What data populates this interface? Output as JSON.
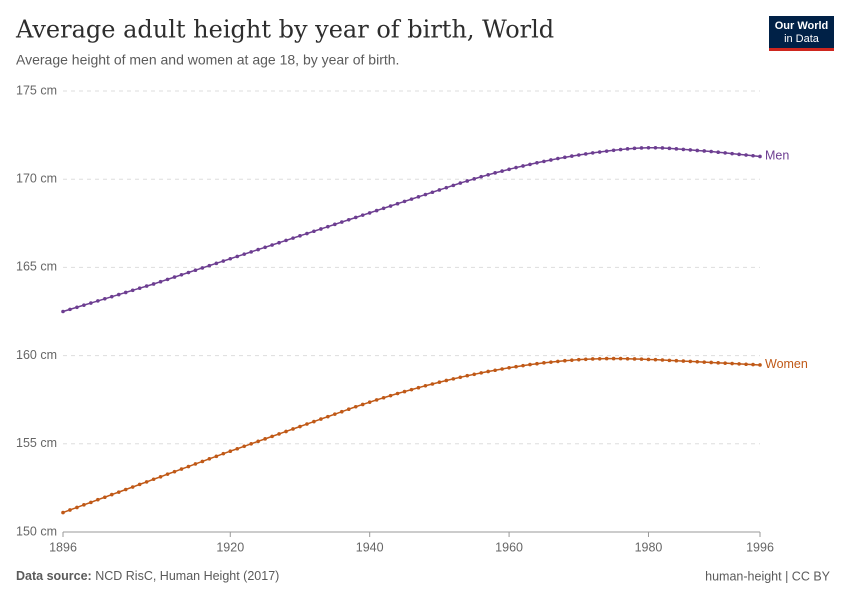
{
  "chart_data": {
    "type": "line",
    "title": "Average adult height by year of birth, World",
    "subtitle": "Average height of men and women at age 18, by year of birth.",
    "source_label": "Data source:",
    "source": "NCD RisC, Human Height (2017)",
    "license": "human-height | CC BY",
    "logo": [
      "Our World",
      "in Data"
    ],
    "x": [
      1896,
      1897,
      1898,
      1899,
      1900,
      1901,
      1902,
      1903,
      1904,
      1905,
      1906,
      1907,
      1908,
      1909,
      1910,
      1911,
      1912,
      1913,
      1914,
      1915,
      1916,
      1917,
      1918,
      1919,
      1920,
      1921,
      1922,
      1923,
      1924,
      1925,
      1926,
      1927,
      1928,
      1929,
      1930,
      1931,
      1932,
      1933,
      1934,
      1935,
      1936,
      1937,
      1938,
      1939,
      1940,
      1941,
      1942,
      1943,
      1944,
      1945,
      1946,
      1947,
      1948,
      1949,
      1950,
      1951,
      1952,
      1953,
      1954,
      1955,
      1956,
      1957,
      1958,
      1959,
      1960,
      1961,
      1962,
      1963,
      1964,
      1965,
      1966,
      1967,
      1968,
      1969,
      1970,
      1971,
      1972,
      1973,
      1974,
      1975,
      1976,
      1977,
      1978,
      1979,
      1980,
      1981,
      1982,
      1983,
      1984,
      1985,
      1986,
      1987,
      1988,
      1989,
      1990,
      1991,
      1992,
      1993,
      1994,
      1995,
      1996
    ],
    "series": [
      {
        "name": "Men",
        "color": "#6d3e91",
        "values": [
          162.5,
          162.62,
          162.74,
          162.86,
          162.98,
          163.1,
          163.22,
          163.34,
          163.46,
          163.58,
          163.7,
          163.82,
          163.94,
          164.06,
          164.19,
          164.32,
          164.45,
          164.58,
          164.71,
          164.84,
          164.97,
          165.1,
          165.23,
          165.36,
          165.49,
          165.62,
          165.75,
          165.88,
          166.01,
          166.14,
          166.27,
          166.4,
          166.53,
          166.66,
          166.79,
          166.92,
          167.05,
          167.18,
          167.31,
          167.44,
          167.57,
          167.7,
          167.83,
          167.96,
          168.09,
          168.22,
          168.35,
          168.48,
          168.61,
          168.74,
          168.87,
          169.0,
          169.13,
          169.26,
          169.39,
          169.52,
          169.65,
          169.78,
          169.9,
          170.02,
          170.14,
          170.25,
          170.36,
          170.46,
          170.56,
          170.66,
          170.75,
          170.84,
          170.93,
          171.01,
          171.09,
          171.17,
          171.24,
          171.31,
          171.37,
          171.43,
          171.49,
          171.54,
          171.59,
          171.64,
          171.68,
          171.72,
          171.75,
          171.77,
          171.78,
          171.78,
          171.77,
          171.75,
          171.72,
          171.69,
          171.66,
          171.63,
          171.6,
          171.57,
          171.53,
          171.49,
          171.45,
          171.41,
          171.37,
          171.33,
          171.29
        ]
      },
      {
        "name": "Women",
        "color": "#c05917",
        "values": [
          151.1,
          151.25,
          151.39,
          151.54,
          151.68,
          151.83,
          151.97,
          152.12,
          152.26,
          152.41,
          152.55,
          152.7,
          152.84,
          152.99,
          153.13,
          153.28,
          153.42,
          153.57,
          153.71,
          153.86,
          154.0,
          154.15,
          154.29,
          154.44,
          154.58,
          154.72,
          154.86,
          155.0,
          155.14,
          155.28,
          155.42,
          155.56,
          155.7,
          155.84,
          155.98,
          156.12,
          156.26,
          156.4,
          156.54,
          156.68,
          156.82,
          156.96,
          157.1,
          157.23,
          157.36,
          157.49,
          157.61,
          157.73,
          157.85,
          157.96,
          158.07,
          158.18,
          158.29,
          158.39,
          158.49,
          158.59,
          158.68,
          158.77,
          158.86,
          158.94,
          159.02,
          159.1,
          159.17,
          159.24,
          159.31,
          159.37,
          159.43,
          159.49,
          159.54,
          159.59,
          159.63,
          159.67,
          159.71,
          159.74,
          159.77,
          159.79,
          159.81,
          159.82,
          159.83,
          159.83,
          159.83,
          159.82,
          159.81,
          159.8,
          159.78,
          159.77,
          159.75,
          159.73,
          159.71,
          159.69,
          159.67,
          159.65,
          159.63,
          159.61,
          159.59,
          159.57,
          159.55,
          159.53,
          159.51,
          159.49,
          159.47
        ]
      }
    ],
    "xlim": [
      1896,
      1996
    ],
    "xticks": [
      1896,
      1920,
      1940,
      1960,
      1980,
      1996
    ],
    "ylim": [
      150,
      175
    ],
    "yticks": [
      {
        "value": 150,
        "label": "150 cm"
      },
      {
        "value": 155,
        "label": "155 cm"
      },
      {
        "value": 160,
        "label": "160 cm"
      },
      {
        "value": 165,
        "label": "165 cm"
      },
      {
        "value": 170,
        "label": "170 cm"
      },
      {
        "value": 175,
        "label": "175 cm"
      }
    ],
    "grid": true
  }
}
